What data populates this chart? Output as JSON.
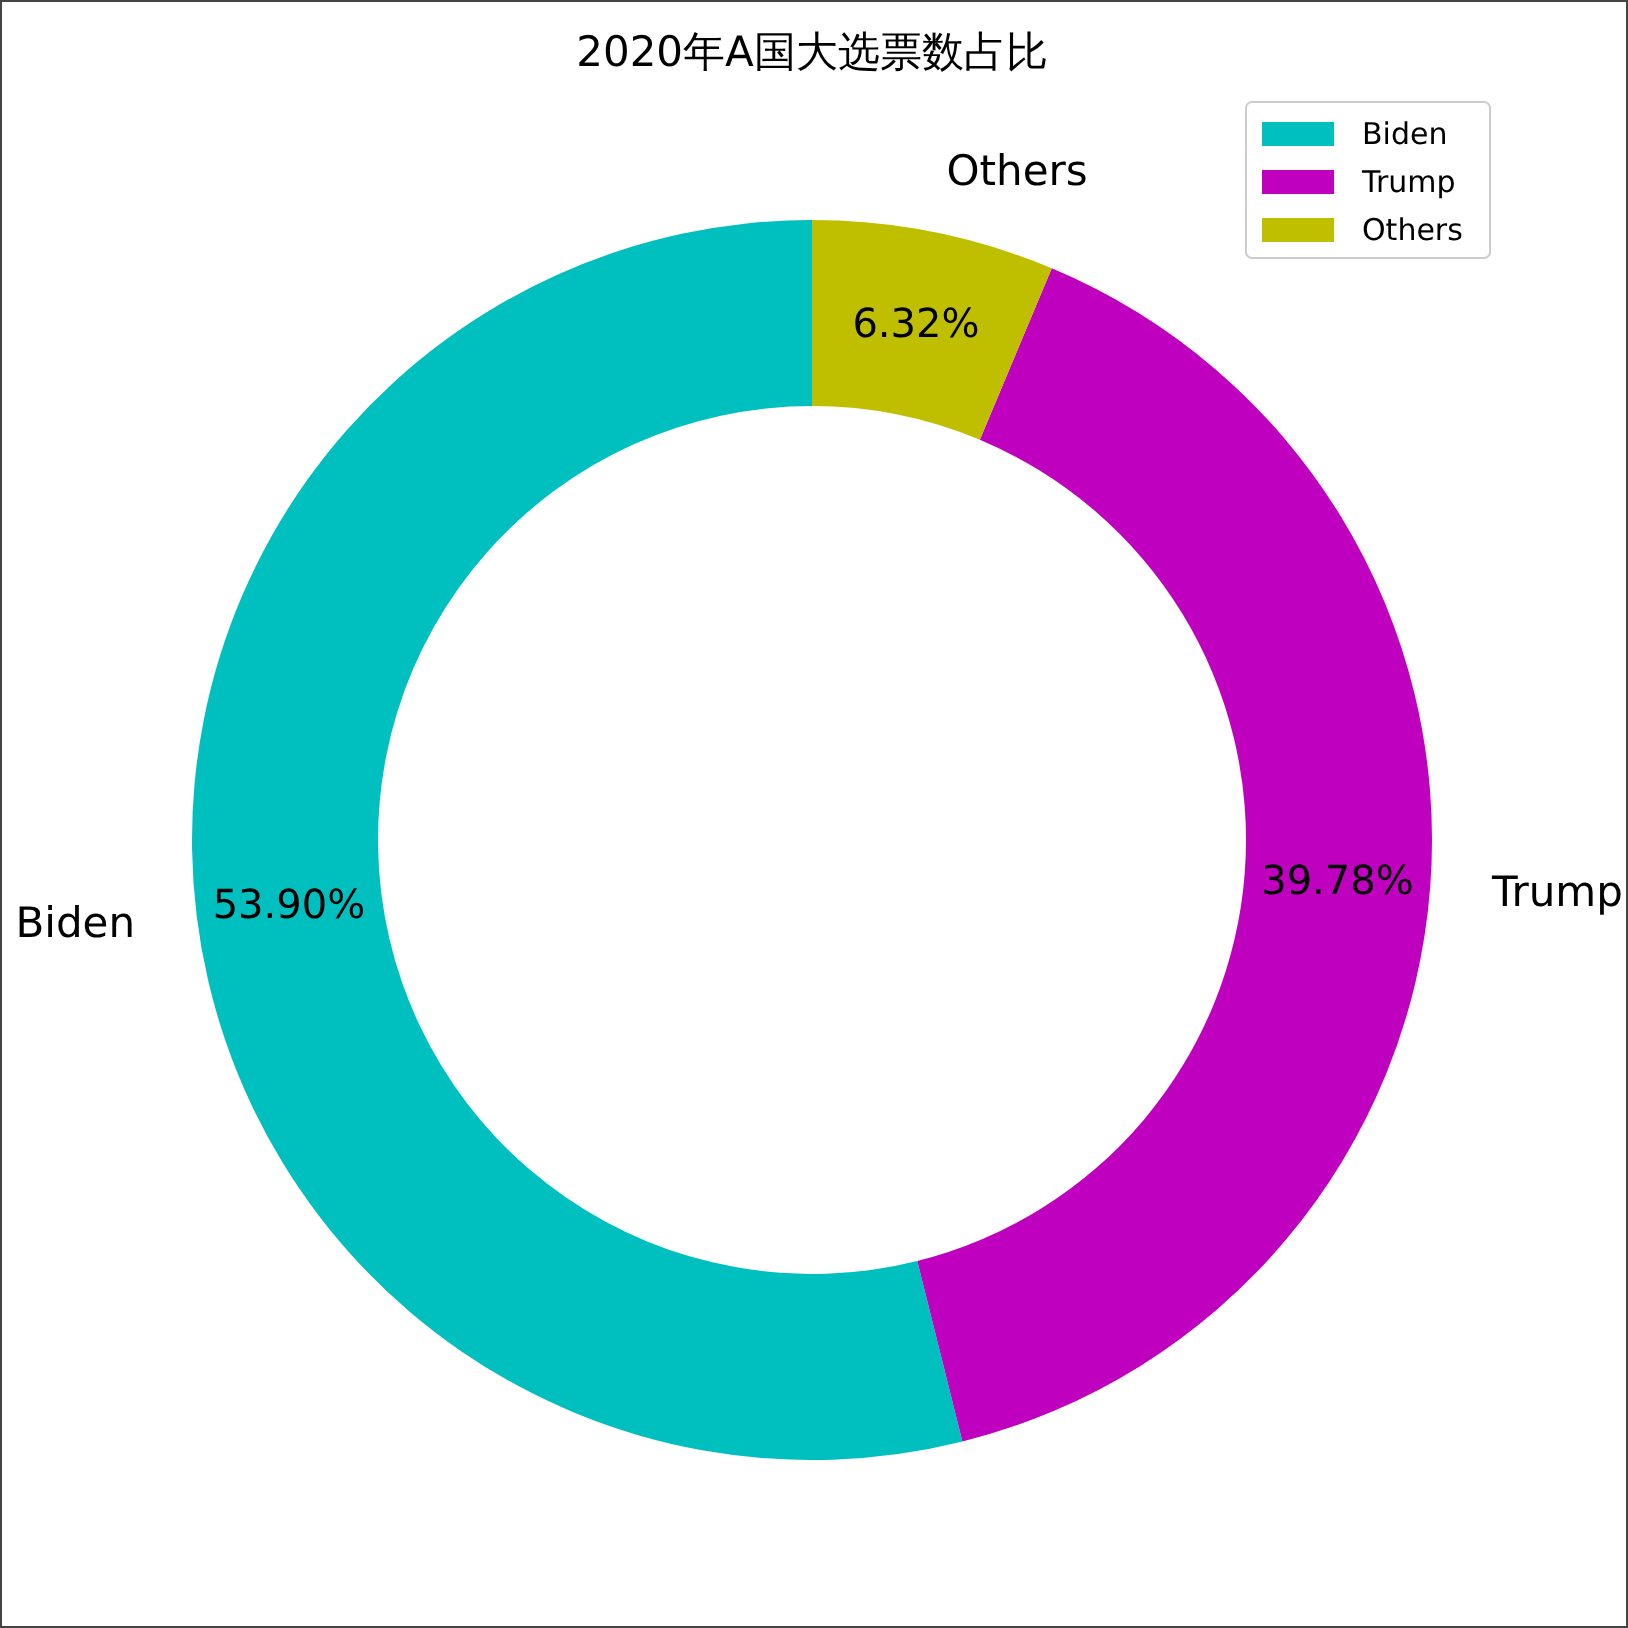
{
  "chart_data": {
    "type": "donut",
    "title": "2020年A国大选票数占比",
    "categories": [
      "Biden",
      "Trump",
      "Others"
    ],
    "values": [
      53.9,
      39.78,
      6.32
    ],
    "colors": [
      "#00bfbf",
      "#bf00bf",
      "#bfbf00"
    ],
    "value_labels": [
      "53.90%",
      "39.78%",
      "6.32%"
    ],
    "legend": "top right"
  }
}
